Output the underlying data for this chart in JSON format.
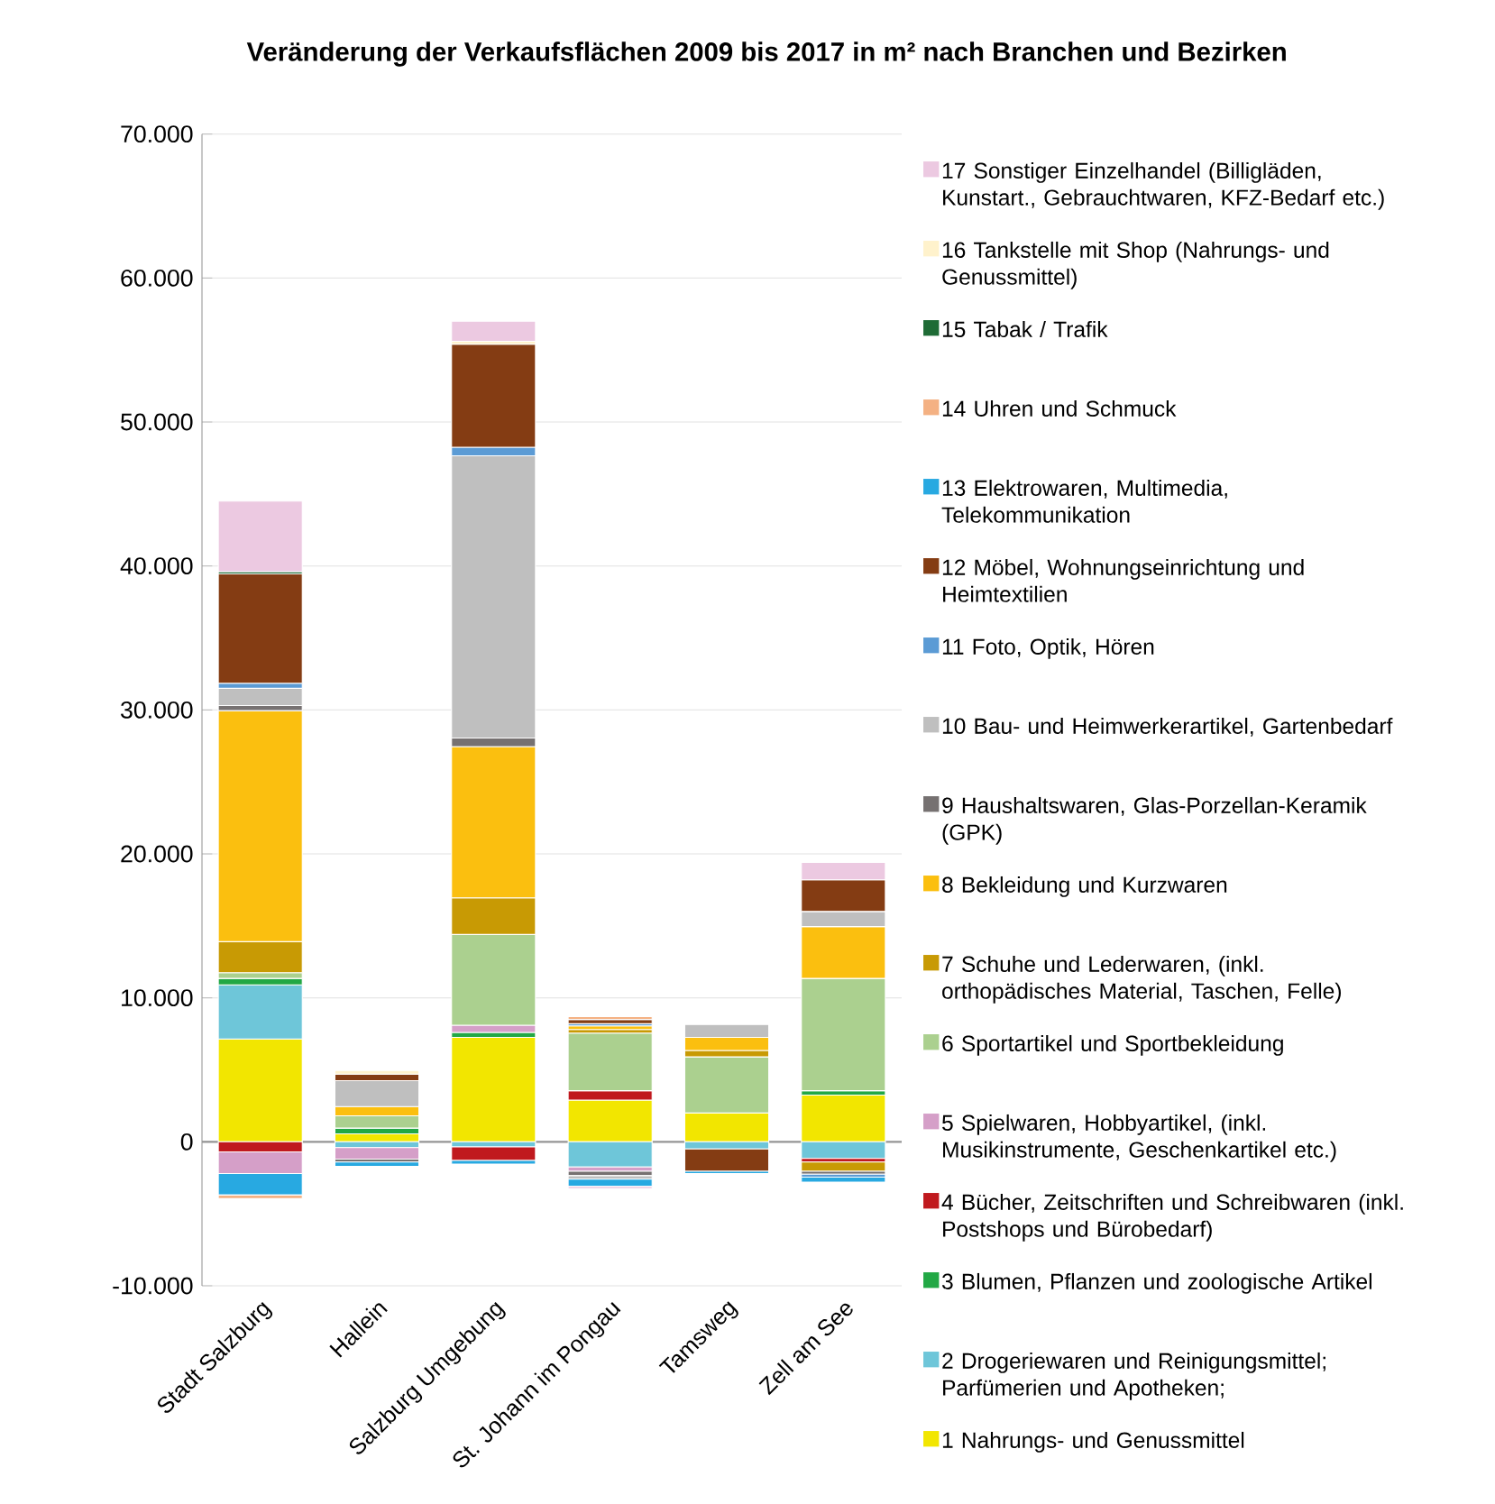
{
  "chart_data": {
    "type": "bar",
    "stacked": true,
    "title": "Veränderung der Verkaufsflächen 2009 bis 2017 in m² nach Branchen und Bezirken",
    "categories": [
      "Stadt Salzburg",
      "Hallein",
      "Salzburg Umgebung",
      "St. Johann im Pongau",
      "Tamsweg",
      "Zell am See"
    ],
    "ylim": [
      -10000,
      70000
    ],
    "yticks": [
      {
        "value": -10000,
        "label": "-10.000"
      },
      {
        "value": 0,
        "label": "0"
      },
      {
        "value": 10000,
        "label": "10.000"
      },
      {
        "value": 20000,
        "label": "20.000"
      },
      {
        "value": 30000,
        "label": "30.000"
      },
      {
        "value": 40000,
        "label": "40.000"
      },
      {
        "value": 50000,
        "label": "50.000"
      },
      {
        "value": 60000,
        "label": "60.000"
      },
      {
        "value": 70000,
        "label": "70.000"
      }
    ],
    "grid": "y",
    "legend": "right",
    "series": [
      {
        "name": "1 Nahrungs- und Genussmittel",
        "color": "#f2e600",
        "values": [
          7150,
          550,
          7250,
          2900,
          2000,
          3250
        ]
      },
      {
        "name": "2 Drogeriewaren und Reinigungsmittel; Parfümerien und Apotheken;",
        "color": "#6ec6d9",
        "values": [
          3750,
          -400,
          -350,
          -1750,
          -500,
          -1150
        ]
      },
      {
        "name": "3 Blumen, Pflanzen und zoologische Artikel",
        "color": "#22a845",
        "values": [
          450,
          400,
          350,
          null,
          null,
          300
        ]
      },
      {
        "name": "4 Bücher, Zeitschriften und Schreibwaren (inkl. Postshops und Bürobedarf)",
        "color": "#c0191e",
        "values": [
          -700,
          null,
          -950,
          650,
          null,
          -250
        ]
      },
      {
        "name": "5 Spielwaren, Hobbyartikel, (inkl. Musikinstrumente, Geschenkartikel etc.)",
        "color": "#d59fc8",
        "values": [
          -1500,
          -800,
          500,
          -300,
          null,
          null
        ]
      },
      {
        "name": "6 Sportartikel und Sportbekleidung",
        "color": "#abd08f",
        "values": [
          400,
          850,
          6300,
          4000,
          3900,
          7800
        ]
      },
      {
        "name": "7 Schuhe und Lederwaren, (inkl. orthopädisches Material, Taschen, Felle)",
        "color": "#c89a04",
        "values": [
          2150,
          null,
          2550,
          250,
          450,
          -650
        ]
      },
      {
        "name": "8 Bekleidung und Kurzwaren",
        "color": "#fbbf0f",
        "values": [
          16050,
          650,
          10500,
          250,
          900,
          3600
        ]
      },
      {
        "name": "9 Haushaltswaren, Glas-Porzellan-Keramik (GPK)",
        "color": "#767171",
        "values": [
          350,
          -200,
          600,
          -300,
          null,
          -200
        ]
      },
      {
        "name": "10 Bau- und Heimwerkerartikel, Gartenbedarf",
        "color": "#bfbfbf",
        "values": [
          1200,
          1800,
          19600,
          -250,
          900,
          1050
        ]
      },
      {
        "name": "11 Foto, Optik, Hören",
        "color": "#5b9bd5",
        "values": [
          350,
          null,
          600,
          150,
          null,
          -200
        ]
      },
      {
        "name": "12 Möbel, Wohnungseinrichtung und Heimtextilien",
        "color": "#843c13",
        "values": [
          7600,
          450,
          7150,
          300,
          -1550,
          2200
        ]
      },
      {
        "name": "13 Elektrowaren, Multimedia, Telekommunikation",
        "color": "#28a9e1",
        "values": [
          -1500,
          -300,
          -250,
          -500,
          -150,
          -350
        ]
      },
      {
        "name": "14 Uhren und Schmuck",
        "color": "#f4b183",
        "values": [
          -250,
          null,
          null,
          200,
          null,
          null
        ]
      },
      {
        "name": "15 Tabak / Trafik",
        "color": "#1e6b35",
        "values": [
          150,
          null,
          null,
          null,
          null,
          null
        ]
      },
      {
        "name": "16 Tankstelle mit Shop (Nahrungs- und Genussmittel)",
        "color": "#fff2cc",
        "values": [
          null,
          250,
          200,
          null,
          null,
          null
        ]
      },
      {
        "name": "17 Sonstiger Einzelhandel (Billigläden, Kunstart., Gebrauchtwaren, KFZ-Bedarf etc.)",
        "color": "#ecc9e1",
        "values": [
          4900,
          null,
          1400,
          -150,
          null,
          1200
        ]
      }
    ]
  }
}
